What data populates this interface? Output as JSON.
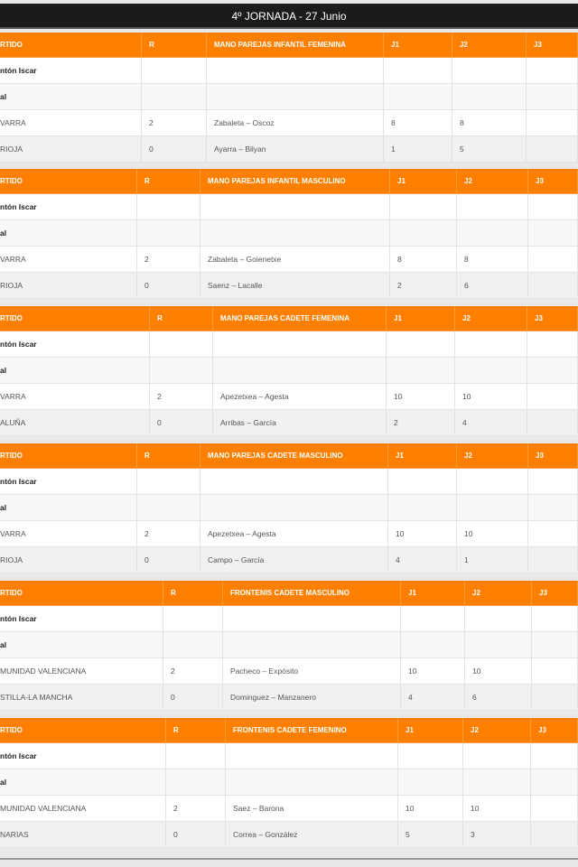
{
  "page_title": "4º JORNADA - 27 Junio",
  "colors": {
    "header_bg": "#ff8000",
    "title_bg": "#1b1b1b",
    "page_bg": "#e9e9e9"
  },
  "tables": [
    {
      "columns": [
        "RTIDO",
        "R",
        "MANO PAREJAS INFANTIL FEMENINA",
        "J1",
        "J2",
        "J3"
      ],
      "rows": [
        [
          "ntón Iscar",
          "",
          "",
          "",
          "",
          ""
        ],
        [
          "al",
          "",
          "",
          "",
          "",
          ""
        ],
        [
          "VARRA",
          "2",
          "Zabaleta – Oscoz",
          "8",
          "8",
          ""
        ],
        [
          "RIOJA",
          "0",
          "Ayarra – Bilyan",
          "1",
          "5",
          ""
        ]
      ]
    },
    {
      "columns": [
        "RTIDO",
        "R",
        "MANO PAREJAS INFANTIL MASCULINO",
        "J1",
        "J2",
        "J3"
      ],
      "rows": [
        [
          "ntón Iscar",
          "",
          "",
          "",
          "",
          ""
        ],
        [
          "al",
          "",
          "",
          "",
          "",
          ""
        ],
        [
          "VARRA",
          "2",
          "Zabaleta – Goienetxe",
          "8",
          "8",
          ""
        ],
        [
          "RIOJA",
          "0",
          "Saenz – Lacalle",
          "2",
          "6",
          ""
        ]
      ]
    },
    {
      "columns": [
        "RTIDO",
        "R",
        "MANO PAREJAS CADETE FEMENINA",
        "J1",
        "J2",
        "J3"
      ],
      "rows": [
        [
          "ntón Iscar",
          "",
          "",
          "",
          "",
          ""
        ],
        [
          "al",
          "",
          "",
          "",
          "",
          ""
        ],
        [
          "VARRA",
          "2",
          "Apezetxea – Agesta",
          "10",
          "10",
          ""
        ],
        [
          "ALUÑA",
          "0",
          "Arribas – García",
          "2",
          "4",
          ""
        ]
      ]
    },
    {
      "columns": [
        "RTIDO",
        "R",
        "MANO PAREJAS CADETE MASCULINO",
        "J1",
        "J2",
        "J3"
      ],
      "rows": [
        [
          "ntón Iscar",
          "",
          "",
          "",
          "",
          ""
        ],
        [
          "al",
          "",
          "",
          "",
          "",
          ""
        ],
        [
          "VARRA",
          "2",
          "Apezetxea – Agesta",
          "10",
          "10",
          ""
        ],
        [
          "RIOJA",
          "0",
          "Campo – García",
          "4",
          "1",
          ""
        ]
      ]
    },
    {
      "columns": [
        "RTIDO",
        "R",
        "FRONTENIS CADETE MASCULINO",
        "J1",
        "J2",
        "J3"
      ],
      "rows": [
        [
          "ntón Iscar",
          "",
          "",
          "",
          "",
          ""
        ],
        [
          "al",
          "",
          "",
          "",
          "",
          ""
        ],
        [
          "MUNIDAD VALENCIANA",
          "2",
          "Pacheco – Expósito",
          "10",
          "10",
          ""
        ],
        [
          "STILLA-LA MANCHA",
          "0",
          "Dominguez – Manzanero",
          "4",
          "6",
          ""
        ]
      ]
    },
    {
      "columns": [
        "RTIDO",
        "R",
        "FRONTENIS CADETE FEMENINO",
        "J1",
        "J2",
        "J3"
      ],
      "rows": [
        [
          "ntón Iscar",
          "",
          "",
          "",
          "",
          ""
        ],
        [
          "al",
          "",
          "",
          "",
          "",
          ""
        ],
        [
          "MUNIDAD VALENCIANA",
          "2",
          "Saez – Barona",
          "10",
          "10",
          ""
        ],
        [
          "NARIAS",
          "0",
          "Correa – González",
          "5",
          "3",
          ""
        ]
      ]
    }
  ]
}
